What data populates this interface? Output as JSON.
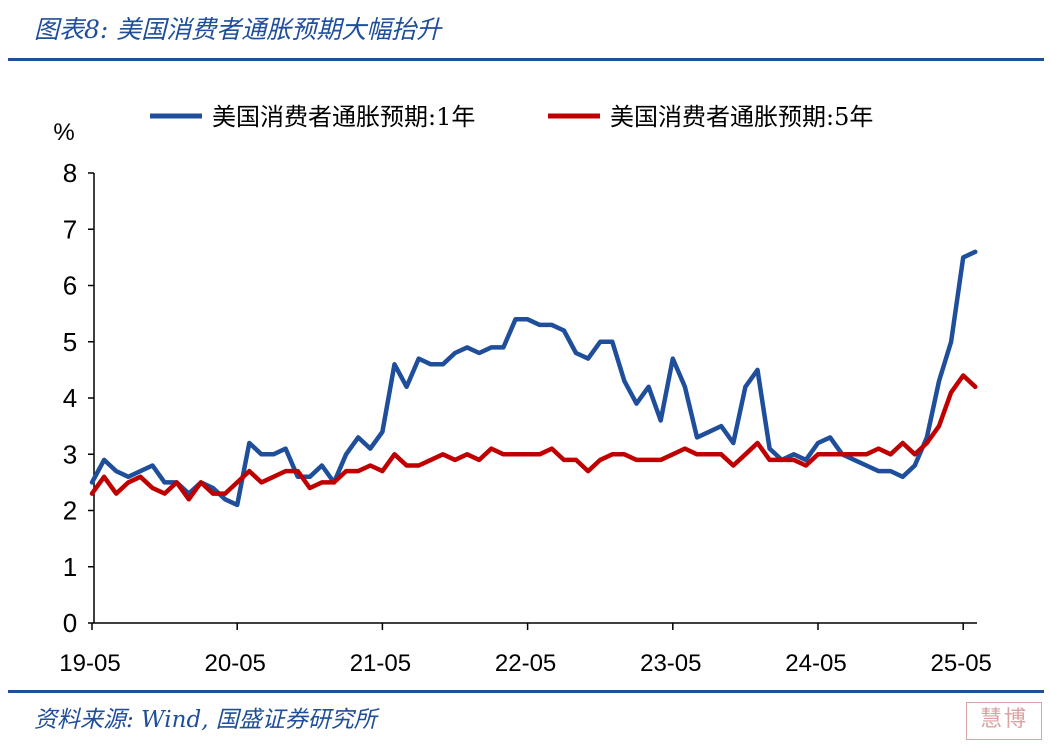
{
  "caption": "图表8:  美国消费者通胀预期大幅抬升",
  "source": "资料来源:  Wind,  国盛证券研究所",
  "watermark": "慧博",
  "colors": {
    "brand": "#1f4e9a",
    "series_1y": "#1f4e9a",
    "series_5y": "#c00000"
  },
  "chart_data": {
    "type": "line",
    "title": "",
    "ylabel": "%",
    "xlabel": "",
    "ylim": [
      0,
      8
    ],
    "yticks": [
      "0",
      "1",
      "2",
      "3",
      "4",
      "5",
      "6",
      "7",
      "8"
    ],
    "xticks": [
      "19-05",
      "20-05",
      "21-05",
      "22-05",
      "23-05",
      "24-05",
      "25-05"
    ],
    "legend": "top",
    "x": [
      "2019-05",
      "2019-06",
      "2019-07",
      "2019-08",
      "2019-09",
      "2019-10",
      "2019-11",
      "2019-12",
      "2020-01",
      "2020-02",
      "2020-03",
      "2020-04",
      "2020-05",
      "2020-06",
      "2020-07",
      "2020-08",
      "2020-09",
      "2020-10",
      "2020-11",
      "2020-12",
      "2021-01",
      "2021-02",
      "2021-03",
      "2021-04",
      "2021-05",
      "2021-06",
      "2021-07",
      "2021-08",
      "2021-09",
      "2021-10",
      "2021-11",
      "2021-12",
      "2022-01",
      "2022-02",
      "2022-03",
      "2022-04",
      "2022-05",
      "2022-06",
      "2022-07",
      "2022-08",
      "2022-09",
      "2022-10",
      "2022-11",
      "2022-12",
      "2023-01",
      "2023-02",
      "2023-03",
      "2023-04",
      "2023-05",
      "2023-06",
      "2023-07",
      "2023-08",
      "2023-09",
      "2023-10",
      "2023-11",
      "2023-12",
      "2024-01",
      "2024-02",
      "2024-03",
      "2024-04",
      "2024-05",
      "2024-06",
      "2024-07",
      "2024-08",
      "2024-09",
      "2024-10",
      "2024-11",
      "2024-12",
      "2025-01",
      "2025-02",
      "2025-03",
      "2025-04",
      "2025-05",
      "2025-06"
    ],
    "series": [
      {
        "name": "美国消费者通胀预期:1年",
        "values": [
          2.5,
          2.9,
          2.7,
          2.6,
          2.7,
          2.8,
          2.5,
          2.5,
          2.3,
          2.5,
          2.4,
          2.2,
          2.1,
          3.2,
          3.0,
          3.0,
          3.1,
          2.6,
          2.6,
          2.8,
          2.5,
          3.0,
          3.3,
          3.1,
          3.4,
          4.6,
          4.2,
          4.7,
          4.6,
          4.6,
          4.8,
          4.9,
          4.8,
          4.9,
          4.9,
          5.4,
          5.4,
          5.3,
          5.3,
          5.2,
          4.8,
          4.7,
          5.0,
          5.0,
          4.3,
          3.9,
          4.2,
          3.6,
          4.7,
          4.2,
          3.3,
          3.4,
          3.5,
          3.2,
          4.2,
          4.5,
          3.1,
          2.9,
          3.0,
          2.9,
          3.2,
          3.3,
          3.0,
          2.9,
          2.8,
          2.7,
          2.7,
          2.6,
          2.8,
          3.3,
          4.3,
          5.0,
          6.5,
          6.6
        ]
      },
      {
        "name": "美国消费者通胀预期:5年",
        "values": [
          2.3,
          2.6,
          2.3,
          2.5,
          2.6,
          2.4,
          2.3,
          2.5,
          2.2,
          2.5,
          2.3,
          2.3,
          2.5,
          2.7,
          2.5,
          2.6,
          2.7,
          2.7,
          2.4,
          2.5,
          2.5,
          2.7,
          2.7,
          2.8,
          2.7,
          3.0,
          2.8,
          2.8,
          2.9,
          3.0,
          2.9,
          3.0,
          2.9,
          3.1,
          3.0,
          3.0,
          3.0,
          3.0,
          3.1,
          2.9,
          2.9,
          2.7,
          2.9,
          3.0,
          3.0,
          2.9,
          2.9,
          2.9,
          3.0,
          3.1,
          3.0,
          3.0,
          3.0,
          2.8,
          3.0,
          3.2,
          2.9,
          2.9,
          2.9,
          2.8,
          3.0,
          3.0,
          3.0,
          3.0,
          3.0,
          3.1,
          3.0,
          3.2,
          3.0,
          3.2,
          3.5,
          4.1,
          4.4,
          4.2
        ]
      }
    ]
  }
}
